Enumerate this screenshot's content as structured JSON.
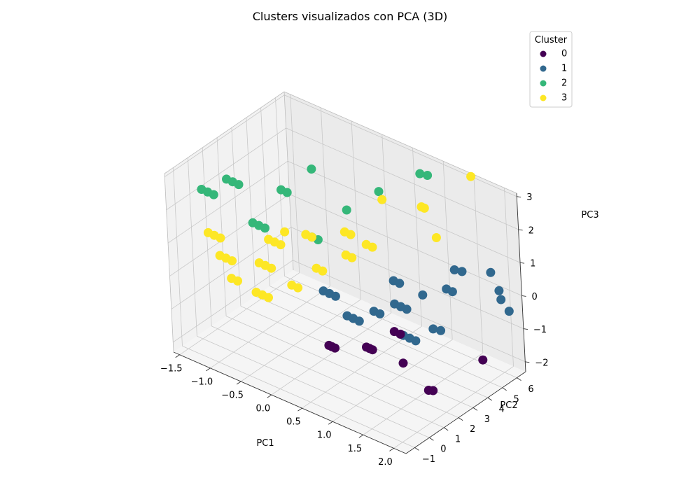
{
  "chart_data": {
    "type": "scatter",
    "projection": "3d",
    "title": "Clusters visualizados con PCA (3D)",
    "xlabel": "PC1",
    "ylabel": "PC2",
    "zlabel": "PC3",
    "xlim": [
      -1.6,
      2.2
    ],
    "ylim": [
      -1.6,
      6.6
    ],
    "zlim": [
      -2.3,
      3.1
    ],
    "xticks": [
      "−1.5",
      "−1.0",
      "−0.5",
      "0.0",
      "0.5",
      "1.0",
      "1.5",
      "2.0"
    ],
    "yticks": [
      "−1",
      "0",
      "1",
      "2",
      "3",
      "4",
      "5",
      "6"
    ],
    "zticks": [
      "−2",
      "−1",
      "0",
      "1",
      "2",
      "3"
    ],
    "grid": true,
    "legend": {
      "title": "Cluster",
      "position": "top-right",
      "entries": [
        "0",
        "1",
        "2",
        "3"
      ]
    },
    "colors": {
      "0": "#440154",
      "1": "#31688e",
      "2": "#35b779",
      "3": "#fde725",
      "pane_left": "#f2f2f2",
      "pane_right": "#ebebeb",
      "pane_floor": "#f5f5f5",
      "grid": "#c8c8c8"
    },
    "series": [
      {
        "name": "0",
        "points": [
          [
            1.2,
            0.1,
            -0.4
          ],
          [
            1.25,
            0.1,
            -0.4
          ],
          [
            1.3,
            0.1,
            -0.4
          ],
          [
            0.7,
            -0.4,
            -0.6
          ],
          [
            0.75,
            -0.4,
            -0.6
          ],
          [
            0.8,
            -0.4,
            -0.6
          ],
          [
            1.3,
            1.6,
            -0.3
          ],
          [
            1.4,
            1.6,
            -0.3
          ],
          [
            1.7,
            0.5,
            -0.6
          ],
          [
            2.0,
            0.9,
            -1.3
          ],
          [
            2.05,
            1.0,
            -1.3
          ],
          [
            2.1,
            4.2,
            -1.3
          ]
        ]
      },
      {
        "name": "1",
        "points": [
          [
            0.3,
            1.0,
            0.3
          ],
          [
            0.4,
            1.0,
            0.3
          ],
          [
            0.5,
            1.0,
            0.3
          ],
          [
            0.6,
            1.3,
            -0.3
          ],
          [
            0.7,
            1.3,
            -0.3
          ],
          [
            0.8,
            1.3,
            -0.3
          ],
          [
            0.9,
            1.9,
            -0.1
          ],
          [
            1.0,
            1.9,
            -0.1
          ],
          [
            1.4,
            1.8,
            -0.4
          ],
          [
            1.5,
            1.8,
            -0.4
          ],
          [
            1.6,
            1.8,
            -0.4
          ],
          [
            1.1,
            2.5,
            0.1
          ],
          [
            1.2,
            2.5,
            0.1
          ],
          [
            1.3,
            2.5,
            0.1
          ],
          [
            1.8,
            2.2,
            0.0
          ],
          [
            1.9,
            2.3,
            0.0
          ],
          [
            0.9,
            3.3,
            0.4
          ],
          [
            1.0,
            3.3,
            0.4
          ],
          [
            1.3,
            3.6,
            0.2
          ],
          [
            1.5,
            4.4,
            0.3
          ],
          [
            1.6,
            4.4,
            0.3
          ],
          [
            1.6,
            4.6,
            0.9
          ],
          [
            1.7,
            4.7,
            0.9
          ],
          [
            1.9,
            5.8,
            0.7
          ],
          [
            2.0,
            5.9,
            0.2
          ],
          [
            2.0,
            6.0,
            -0.1
          ],
          [
            2.1,
            6.1,
            -0.4
          ]
        ]
      },
      {
        "name": "2",
        "points": [
          [
            -1.5,
            0.4,
            2.1
          ],
          [
            -1.4,
            0.4,
            2.1
          ],
          [
            -1.3,
            0.4,
            2.1
          ],
          [
            -1.2,
            0.9,
            2.5
          ],
          [
            -1.1,
            0.9,
            2.5
          ],
          [
            -1.0,
            0.9,
            2.5
          ],
          [
            -1.0,
            1.7,
            1.1
          ],
          [
            -0.9,
            1.7,
            1.1
          ],
          [
            -0.8,
            1.7,
            1.1
          ],
          [
            -0.6,
            2.1,
            2.3
          ],
          [
            -0.5,
            2.1,
            2.3
          ],
          [
            -0.3,
            2.8,
            0.9
          ],
          [
            -0.2,
            2.8,
            0.9
          ],
          [
            -0.2,
            2.6,
            3.1
          ],
          [
            0.0,
            4.0,
            1.6
          ],
          [
            0.3,
            5.0,
            2.1
          ],
          [
            0.7,
            6.2,
            2.6
          ],
          [
            0.8,
            6.3,
            2.6
          ]
        ]
      },
      {
        "name": "3",
        "points": [
          [
            -1.4,
            0.3,
            0.9
          ],
          [
            -1.3,
            0.3,
            0.9
          ],
          [
            -1.2,
            0.3,
            0.9
          ],
          [
            -1.3,
            0.6,
            0.2
          ],
          [
            -1.2,
            0.6,
            0.2
          ],
          [
            -1.1,
            0.6,
            0.2
          ],
          [
            -1.2,
            0.9,
            -0.5
          ],
          [
            -1.1,
            0.9,
            -0.5
          ],
          [
            -0.9,
            1.3,
            -0.8
          ],
          [
            -0.8,
            1.3,
            -0.8
          ],
          [
            -0.7,
            1.3,
            -0.8
          ],
          [
            -0.8,
            1.2,
            0.2
          ],
          [
            -0.7,
            1.2,
            0.2
          ],
          [
            -0.6,
            1.2,
            0.2
          ],
          [
            -0.7,
            1.5,
            0.9
          ],
          [
            -0.6,
            1.5,
            0.9
          ],
          [
            -0.5,
            1.5,
            0.9
          ],
          [
            -0.5,
            1.8,
            1.2
          ],
          [
            -0.4,
            1.7,
            -0.3
          ],
          [
            -0.3,
            1.7,
            -0.3
          ],
          [
            -0.3,
            2.4,
            1.1
          ],
          [
            -0.2,
            2.4,
            1.1
          ],
          [
            -0.1,
            2.2,
            0.3
          ],
          [
            0.0,
            2.2,
            0.3
          ],
          [
            0.2,
            3.0,
            1.4
          ],
          [
            0.3,
            3.0,
            1.4
          ],
          [
            0.1,
            3.4,
            0.5
          ],
          [
            0.2,
            3.4,
            0.5
          ],
          [
            0.4,
            3.6,
            1.0
          ],
          [
            0.5,
            3.6,
            1.0
          ],
          [
            0.6,
            4.0,
            2.4
          ],
          [
            1.0,
            5.0,
            2.2
          ],
          [
            1.05,
            5.0,
            2.2
          ],
          [
            1.2,
            5.1,
            1.4
          ],
          [
            1.6,
            6.0,
            3.3
          ]
        ]
      }
    ]
  }
}
